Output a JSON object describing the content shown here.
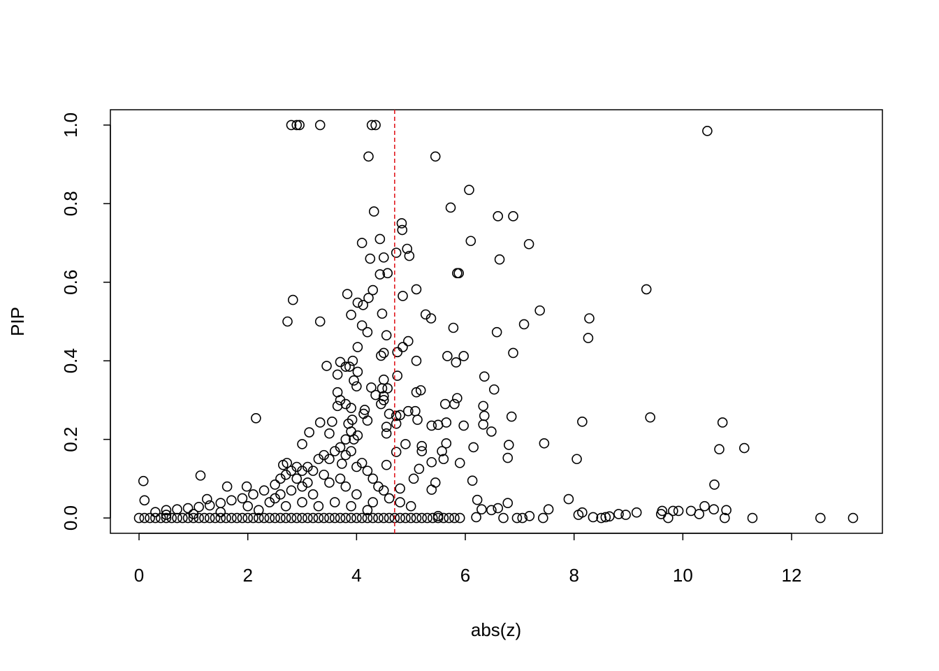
{
  "chart_data": {
    "type": "scatter",
    "x_label": "abs(z)",
    "y_label": "PIP",
    "xlim": [
      -0.527,
      13.67
    ],
    "ylim": [
      -0.039,
      1.039
    ],
    "xticks": [
      0,
      2,
      4,
      6,
      8,
      10,
      12
    ],
    "yticks": [
      {
        "value": 0,
        "label": "0.0"
      },
      {
        "value": 0.2,
        "label": "0.2"
      },
      {
        "value": 0.4,
        "label": "0.4"
      },
      {
        "value": 0.6,
        "label": "0.6"
      },
      {
        "value": 0.8,
        "label": "0.8"
      },
      {
        "value": 1,
        "label": "1.0"
      }
    ],
    "grid": false,
    "color": "#000000",
    "vline": 4.7,
    "vline_color": "#e0191e",
    "x": [
      2.8,
      2.9,
      2.95,
      3.33,
      4.28,
      4.35,
      10.45,
      4.22,
      5.45,
      6.07,
      5.73,
      4.32,
      6.6,
      6.88,
      4.83,
      4.84,
      4.43,
      6.1,
      4.1,
      7.17,
      4.93,
      4.73,
      4.97,
      4.25,
      4.5,
      6.63,
      5.85,
      5.88,
      4.43,
      4.57,
      9.33,
      5.1,
      4.3,
      3.83,
      4.85,
      4.22,
      2.83,
      4.02,
      4.12,
      7.37,
      4.47,
      3.9,
      5.27,
      5.37,
      8.28,
      2.73,
      3.33,
      7.08,
      4.1,
      5.78,
      4.2,
      6.58,
      4.55,
      8.26,
      4.95,
      4.85,
      4.02,
      4.5,
      4.75,
      6.88,
      4.45,
      5.67,
      5.97,
      5.1,
      5.83,
      3.7,
      3.45,
      3.93,
      3.8,
      3.87,
      4.02,
      3.65,
      6.35,
      4.75,
      3.95,
      4.5,
      4.27,
      4.47,
      4.57,
      4.0,
      5.18,
      5.1,
      6.53,
      3.65,
      4.5,
      4.35,
      4.5,
      5.85,
      3.7,
      4.45,
      3.8,
      5.63,
      5.8,
      6.33,
      3.9,
      4.15,
      3.65,
      4.95,
      5.08,
      4.13,
      4.6,
      4.8,
      4.73,
      6.35,
      6.85,
      9.4,
      2.15,
      5.12,
      3.92,
      4.2,
      8.15,
      5.65,
      6.33,
      10.73,
      3.33,
      4.73,
      5.5,
      5.97,
      3.55,
      3.85,
      4.55,
      5.38,
      3.9,
      4.55,
      6.48,
      3.13,
      3.5,
      4.02,
      3.8,
      3.95,
      4.9,
      5.65,
      7.45,
      6.8,
      3.0,
      5.2,
      6.15,
      11.13,
      10.67,
      5.2,
      5.57,
      4.73,
      6.78,
      5.6,
      8.05,
      5.38,
      5.9,
      4.55,
      3.73,
      2.72,
      5.15,
      2.65,
      1.13,
      5.05,
      6.13,
      5.45,
      5.38,
      0.08,
      10.58,
      1.62,
      1.98,
      4.8,
      6.22,
      7.9,
      0.1,
      1.25,
      6.3,
      6.78,
      6.6,
      10.4,
      7.53,
      9.62,
      10.8,
      9.82,
      10.15,
      9.92,
      10.57,
      6.48,
      8.82,
      9.15,
      8.15,
      7.18,
      7.43,
      6.95,
      7.05,
      8.5,
      8.58,
      8.35,
      8.65,
      9.73,
      10.77,
      11.28,
      12.53,
      13.13,
      6.7,
      6.2,
      5.9,
      5.5,
      8.08,
      8.95,
      9.6,
      10.3,
      0,
      0.1,
      0.2,
      0.3,
      0.4,
      0.5,
      0.6,
      0.7,
      0.8,
      0.9,
      1.0,
      1.1,
      1.2,
      1.3,
      1.4,
      1.5,
      1.6,
      1.7,
      1.8,
      1.9,
      2.0,
      2.1,
      2.2,
      2.3,
      2.4,
      2.5,
      2.6,
      2.7,
      2.8,
      2.9,
      3.0,
      3.1,
      3.2,
      3.3,
      3.4,
      3.5,
      3.6,
      3.7,
      3.8,
      3.9,
      4.0,
      4.1,
      4.2,
      4.3,
      4.4,
      4.5,
      4.6,
      4.7,
      4.8,
      4.9,
      5.0,
      5.1,
      5.2,
      5.3,
      5.4,
      5.5,
      5.6,
      5.7,
      5.8,
      0.3,
      0.5,
      0.7,
      0.9,
      1.1,
      1.3,
      1.5,
      1.7,
      1.9,
      2.1,
      2.3,
      2.5,
      2.6,
      2.7,
      2.8,
      2.9,
      3.0,
      3.1,
      3.2,
      3.3,
      3.4,
      3.5,
      3.6,
      3.7,
      3.8,
      3.9,
      4.0,
      4.1,
      4.2,
      4.3,
      4.4,
      4.5,
      4.6,
      4.8,
      5.0,
      1.5,
      2.0,
      2.5,
      2.8,
      3.0,
      3.2,
      3.5,
      3.8,
      4.0,
      4.3,
      2.2,
      2.7,
      3.0,
      3.3,
      3.6,
      3.9,
      4.2,
      1.0,
      0.5,
      2.9,
      3.1,
      3.4,
      3.7,
      2.6,
      2.4
    ],
    "values": [
      1.0,
      1.0,
      1.0,
      1.0,
      1.0,
      1.0,
      0.985,
      0.92,
      0.92,
      0.835,
      0.79,
      0.78,
      0.768,
      0.768,
      0.75,
      0.733,
      0.71,
      0.705,
      0.7,
      0.697,
      0.685,
      0.675,
      0.667,
      0.66,
      0.663,
      0.658,
      0.623,
      0.623,
      0.62,
      0.623,
      0.582,
      0.582,
      0.58,
      0.57,
      0.565,
      0.56,
      0.555,
      0.548,
      0.542,
      0.528,
      0.52,
      0.517,
      0.518,
      0.508,
      0.508,
      0.5,
      0.5,
      0.493,
      0.49,
      0.484,
      0.473,
      0.473,
      0.465,
      0.458,
      0.45,
      0.435,
      0.435,
      0.42,
      0.422,
      0.42,
      0.413,
      0.412,
      0.412,
      0.4,
      0.396,
      0.397,
      0.387,
      0.4,
      0.385,
      0.385,
      0.372,
      0.365,
      0.36,
      0.362,
      0.35,
      0.352,
      0.332,
      0.33,
      0.33,
      0.335,
      0.325,
      0.32,
      0.327,
      0.32,
      0.31,
      0.313,
      0.3,
      0.305,
      0.3,
      0.29,
      0.29,
      0.29,
      0.29,
      0.285,
      0.28,
      0.275,
      0.285,
      0.272,
      0.272,
      0.265,
      0.265,
      0.262,
      0.26,
      0.26,
      0.258,
      0.256,
      0.254,
      0.25,
      0.25,
      0.248,
      0.245,
      0.243,
      0.238,
      0.243,
      0.243,
      0.24,
      0.237,
      0.235,
      0.245,
      0.24,
      0.232,
      0.235,
      0.22,
      0.215,
      0.22,
      0.218,
      0.215,
      0.21,
      0.2,
      0.2,
      0.188,
      0.19,
      0.19,
      0.186,
      0.188,
      0.183,
      0.18,
      0.178,
      0.175,
      0.17,
      0.17,
      0.168,
      0.153,
      0.15,
      0.15,
      0.142,
      0.14,
      0.135,
      0.138,
      0.14,
      0.125,
      0.135,
      0.108,
      0.1,
      0.095,
      0.09,
      0.072,
      0.094,
      0.085,
      0.08,
      0.08,
      0.075,
      0.046,
      0.048,
      0.045,
      0.048,
      0.022,
      0.038,
      0.025,
      0.03,
      0.022,
      0.018,
      0.02,
      0.018,
      0.018,
      0.018,
      0.022,
      0.02,
      0.01,
      0.014,
      0.014,
      0.005,
      0.0,
      0.0,
      0.0,
      0.0,
      0.002,
      0.002,
      0.004,
      0.0,
      0.0,
      0.0,
      0.0,
      0.0,
      0.0,
      0.002,
      0.0,
      0.005,
      0.008,
      0.008,
      0.01,
      0.01,
      0,
      0,
      0,
      0,
      0,
      0,
      0,
      0,
      0,
      0,
      0,
      0,
      0,
      0,
      0,
      0,
      0,
      0,
      0,
      0,
      0,
      0,
      0,
      0,
      0,
      0,
      0,
      0,
      0,
      0,
      0,
      0,
      0,
      0,
      0,
      0,
      0,
      0,
      0,
      0,
      0,
      0,
      0,
      0,
      0,
      0,
      0,
      0,
      0,
      0,
      0,
      0,
      0,
      0,
      0,
      0,
      0,
      0,
      0,
      0.015,
      0.02,
      0.022,
      0.025,
      0.028,
      0.032,
      0.038,
      0.045,
      0.05,
      0.06,
      0.07,
      0.085,
      0.1,
      0.11,
      0.12,
      0.13,
      0.12,
      0.13,
      0.12,
      0.15,
      0.16,
      0.15,
      0.17,
      0.18,
      0.16,
      0.17,
      0.13,
      0.14,
      0.12,
      0.1,
      0.08,
      0.07,
      0.05,
      0.04,
      0.03,
      0.015,
      0.03,
      0.05,
      0.07,
      0.08,
      0.06,
      0.09,
      0.08,
      0.06,
      0.04,
      0.02,
      0.03,
      0.04,
      0.03,
      0.04,
      0.03,
      0.02,
      0.01,
      0.008,
      0.1,
      0.09,
      0.11,
      0.1,
      0.06,
      0.04
    ]
  }
}
